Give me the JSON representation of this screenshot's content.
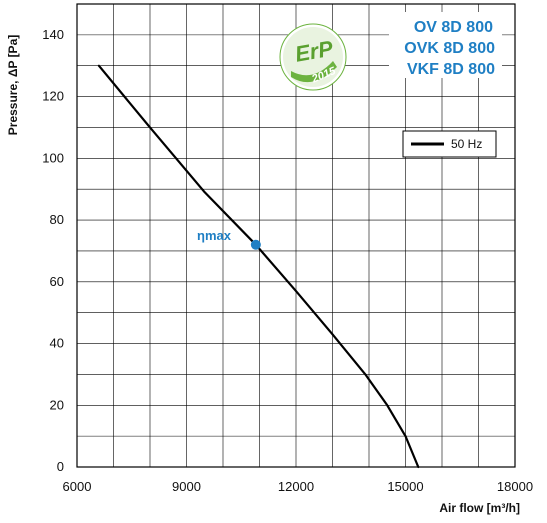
{
  "chart_data": {
    "type": "line",
    "xlabel": "Air flow [m³/h]",
    "ylabel": "Pressure, ΔP [Pa]",
    "xlim": [
      6000,
      18000
    ],
    "ylim": [
      0,
      150
    ],
    "x_ticks": [
      6000,
      9000,
      12000,
      15000,
      18000
    ],
    "y_ticks": [
      0,
      20,
      40,
      60,
      80,
      100,
      120,
      140
    ],
    "grid": true,
    "legend_position": "top-right",
    "series": [
      {
        "name": "50 Hz",
        "color": "#000000",
        "x": [
          6600,
          8000,
          9500,
          10900,
          12000,
          13000,
          13900,
          14500,
          15000,
          15350
        ],
        "y": [
          130,
          110,
          89,
          72,
          57,
          43,
          30,
          20,
          10,
          0
        ]
      }
    ],
    "annotations": {
      "eta_max_label": "ηmax",
      "eta_max_point": {
        "x": 10900,
        "y": 72
      },
      "eta_color": "#1f7fc4"
    },
    "models": [
      "OV 8D 800",
      "OVK 8D 800",
      "VKF 8D 800"
    ],
    "badge": {
      "line1": "ErP",
      "line2": "2015",
      "color": "#6cb33f"
    }
  }
}
